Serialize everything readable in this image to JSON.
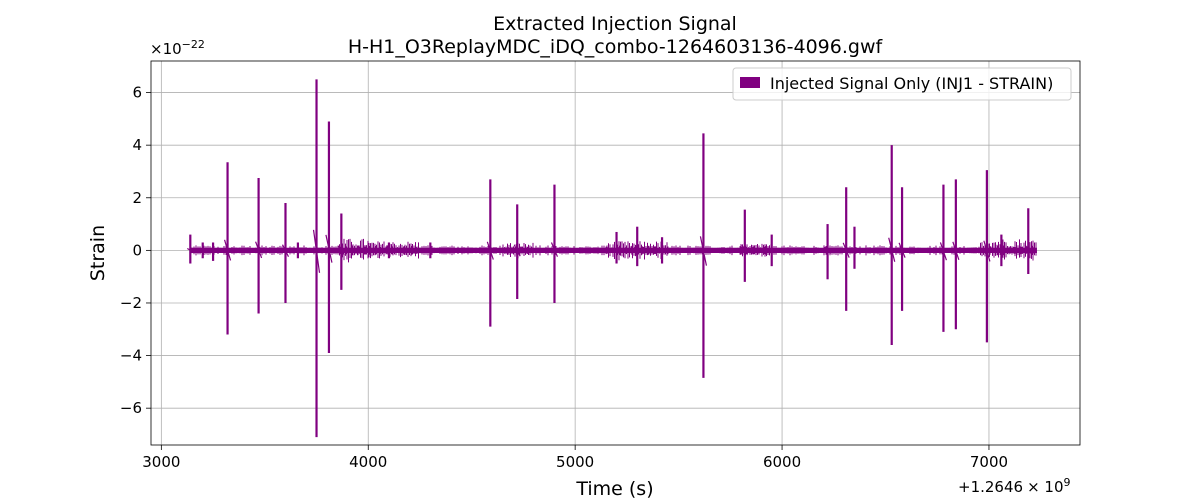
{
  "chart_data": {
    "type": "line",
    "title": "Extracted Injection Signal",
    "subtitle": "H-H1_O3ReplayMDC_iDQ_combo-1264603136-4096.gwf",
    "xlabel": "Time (s)",
    "ylabel": "Strain",
    "x_offset_label": "+1.2646",
    "x_offset_exponent_label": "× 10",
    "x_offset_exponent": "9",
    "y_scale_label": "×10",
    "y_scale_exponent": "−22",
    "xlim": [
      2950,
      7440
    ],
    "ylim": [
      -7.4,
      7.2
    ],
    "xticks": [
      3000,
      4000,
      5000,
      6000,
      7000
    ],
    "xtick_labels": [
      "3000",
      "4000",
      "5000",
      "6000",
      "7000"
    ],
    "yticks": [
      -6,
      -4,
      -2,
      0,
      2,
      4,
      6
    ],
    "ytick_labels": [
      "−6",
      "−4",
      "−2",
      "0",
      "2",
      "4",
      "6"
    ],
    "grid": true,
    "legend_position": "top-right",
    "series_color": "#800080",
    "series": [
      {
        "name": "Injected Signal Only (INJ1 - STRAIN)",
        "x_range": [
          3136,
          7232
        ],
        "baseline_amplitude": 0.1,
        "spikes": [
          {
            "x": 3140,
            "y_max": 0.6,
            "y_min": -0.5
          },
          {
            "x": 3200,
            "y_max": 0.3,
            "y_min": -0.3
          },
          {
            "x": 3250,
            "y_max": 0.3,
            "y_min": -0.4
          },
          {
            "x": 3320,
            "y_max": 3.35,
            "y_min": -3.2
          },
          {
            "x": 3470,
            "y_max": 2.75,
            "y_min": -2.4
          },
          {
            "x": 3600,
            "y_max": 1.8,
            "y_min": -2.0
          },
          {
            "x": 3660,
            "y_max": 0.3,
            "y_min": -0.3
          },
          {
            "x": 3750,
            "y_max": 6.5,
            "y_min": -7.1
          },
          {
            "x": 3810,
            "y_max": 4.9,
            "y_min": -3.9
          },
          {
            "x": 3870,
            "y_max": 1.4,
            "y_min": -1.5
          },
          {
            "x": 4100,
            "y_max": 0.3,
            "y_min": -0.3
          },
          {
            "x": 4300,
            "y_max": 0.3,
            "y_min": -0.3
          },
          {
            "x": 4590,
            "y_max": 2.7,
            "y_min": -2.9
          },
          {
            "x": 4720,
            "y_max": 1.75,
            "y_min": -1.85
          },
          {
            "x": 4900,
            "y_max": 2.5,
            "y_min": -2.0
          },
          {
            "x": 5200,
            "y_max": 0.7,
            "y_min": -0.5
          },
          {
            "x": 5300,
            "y_max": 0.9,
            "y_min": -0.6
          },
          {
            "x": 5420,
            "y_max": 0.5,
            "y_min": -0.5
          },
          {
            "x": 5620,
            "y_max": 4.45,
            "y_min": -4.85
          },
          {
            "x": 5820,
            "y_max": 1.55,
            "y_min": -1.2
          },
          {
            "x": 5950,
            "y_max": 0.6,
            "y_min": -0.6
          },
          {
            "x": 6220,
            "y_max": 1.0,
            "y_min": -1.1
          },
          {
            "x": 6310,
            "y_max": 2.4,
            "y_min": -2.3
          },
          {
            "x": 6350,
            "y_max": 0.9,
            "y_min": -0.7
          },
          {
            "x": 6530,
            "y_max": 4.0,
            "y_min": -3.6
          },
          {
            "x": 6580,
            "y_max": 2.4,
            "y_min": -2.3
          },
          {
            "x": 6780,
            "y_max": 2.5,
            "y_min": -3.1
          },
          {
            "x": 6840,
            "y_max": 2.7,
            "y_min": -3.0
          },
          {
            "x": 6990,
            "y_max": 3.05,
            "y_min": -3.5
          },
          {
            "x": 7060,
            "y_max": 0.6,
            "y_min": -0.6
          },
          {
            "x": 7190,
            "y_max": 1.6,
            "y_min": -0.9
          }
        ],
        "noisy_regions": [
          {
            "from": 3850,
            "to": 4000,
            "amplitude": 0.45
          },
          {
            "from": 4000,
            "to": 4250,
            "amplitude": 0.35
          },
          {
            "from": 4650,
            "to": 4800,
            "amplitude": 0.3
          },
          {
            "from": 5150,
            "to": 5450,
            "amplitude": 0.35
          },
          {
            "from": 5800,
            "to": 5950,
            "amplitude": 0.25
          },
          {
            "from": 6950,
            "to": 7232,
            "amplitude": 0.45
          }
        ]
      }
    ]
  }
}
